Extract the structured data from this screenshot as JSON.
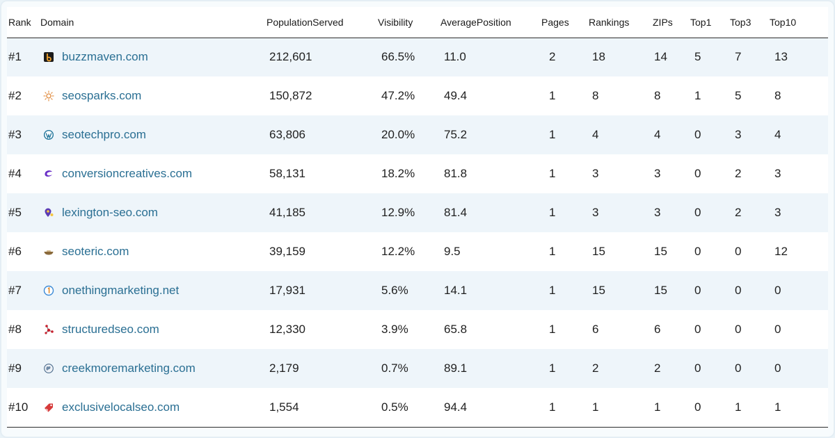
{
  "table": {
    "headers": {
      "rank": "Rank",
      "domain": "Domain",
      "population": "PopulationServed",
      "visibility": "Visibility",
      "avg_position": "AveragePosition",
      "pages": "Pages",
      "rankings": "Rankings",
      "zips": "ZIPs",
      "top1": "Top1",
      "top3": "Top3",
      "top10": "Top10"
    },
    "rows": [
      {
        "rank": "#1",
        "domain": "buzzmaven.com",
        "favicon": "buzzmaven-logo-icon",
        "population": "212,601",
        "visibility": "66.5%",
        "avg_position": "11.0",
        "pages": "2",
        "rankings": "18",
        "zips": "14",
        "top1": "5",
        "top3": "7",
        "top10": "13"
      },
      {
        "rank": "#2",
        "domain": "seosparks.com",
        "favicon": "sun-spark-icon",
        "population": "150,872",
        "visibility": "47.2%",
        "avg_position": "49.4",
        "pages": "1",
        "rankings": "8",
        "zips": "8",
        "top1": "1",
        "top3": "5",
        "top10": "8"
      },
      {
        "rank": "#3",
        "domain": "seotechpro.com",
        "favicon": "wordpress-icon",
        "population": "63,806",
        "visibility": "20.0%",
        "avg_position": "75.2",
        "pages": "1",
        "rankings": "4",
        "zips": "4",
        "top1": "0",
        "top3": "3",
        "top10": "4"
      },
      {
        "rank": "#4",
        "domain": "conversioncreatives.com",
        "favicon": "swirl-c-icon",
        "population": "58,131",
        "visibility": "18.2%",
        "avg_position": "81.8",
        "pages": "1",
        "rankings": "3",
        "zips": "3",
        "top1": "0",
        "top3": "2",
        "top10": "3"
      },
      {
        "rank": "#5",
        "domain": "lexington-seo.com",
        "favicon": "location-pin-icon",
        "population": "41,185",
        "visibility": "12.9%",
        "avg_position": "81.4",
        "pages": "1",
        "rankings": "3",
        "zips": "3",
        "top1": "0",
        "top3": "2",
        "top10": "3"
      },
      {
        "rank": "#6",
        "domain": "seoteric.com",
        "favicon": "bowl-icon",
        "population": "39,159",
        "visibility": "12.2%",
        "avg_position": "9.5",
        "pages": "1",
        "rankings": "15",
        "zips": "15",
        "top1": "0",
        "top3": "0",
        "top10": "12"
      },
      {
        "rank": "#7",
        "domain": "onethingmarketing.net",
        "favicon": "circle-one-icon",
        "population": "17,931",
        "visibility": "5.6%",
        "avg_position": "14.1",
        "pages": "1",
        "rankings": "15",
        "zips": "15",
        "top1": "0",
        "top3": "0",
        "top10": "0"
      },
      {
        "rank": "#8",
        "domain": "structuredseo.com",
        "favicon": "network-nodes-icon",
        "population": "12,330",
        "visibility": "3.9%",
        "avg_position": "65.8",
        "pages": "1",
        "rankings": "6",
        "zips": "6",
        "top1": "0",
        "top3": "0",
        "top10": "0"
      },
      {
        "rank": "#9",
        "domain": "creekmoremarketing.com",
        "favicon": "globe-icon",
        "population": "2,179",
        "visibility": "0.7%",
        "avg_position": "89.1",
        "pages": "1",
        "rankings": "2",
        "zips": "2",
        "top1": "0",
        "top3": "0",
        "top10": "0"
      },
      {
        "rank": "#10",
        "domain": "exclusivelocalseo.com",
        "favicon": "tag-icon",
        "population": "1,554",
        "visibility": "0.5%",
        "avg_position": "94.4",
        "pages": "1",
        "rankings": "1",
        "zips": "1",
        "top1": "0",
        "top3": "1",
        "top10": "1"
      }
    ]
  },
  "colors": {
    "link": "#2a6f93",
    "row_alt": "#eef5fa",
    "rule": "#2b2b2b"
  }
}
